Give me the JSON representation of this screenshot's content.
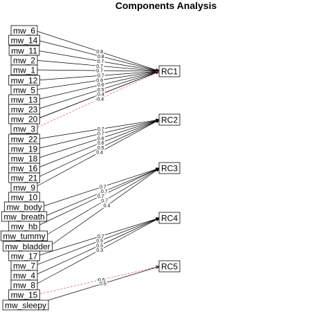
{
  "title": "Components Analysis",
  "components": [
    "RC1",
    "RC2",
    "RC3",
    "RC4",
    "RC5"
  ],
  "variables": [
    "mw_6",
    "mw_14",
    "mw_11",
    "mw_2",
    "mw_1",
    "mw_12",
    "mw_5",
    "mw_13",
    "mw_23",
    "mw_20",
    "mw_3",
    "mw_22",
    "mw_19",
    "mw_18",
    "mw_16",
    "mw_21",
    "mw_9",
    "mw_10",
    "mw_body",
    "mw_breath",
    "mw_hb",
    "mw_tummy",
    "mw_bladder",
    "mw_17",
    "mw_7",
    "mw_4",
    "mw_8",
    "mw_15",
    "mw_sleepy"
  ],
  "edges": [
    {
      "from": "mw_6",
      "to": "RC1",
      "label": "0.8",
      "negative": false
    },
    {
      "from": "mw_14",
      "to": "RC1",
      "label": "0.8",
      "negative": false
    },
    {
      "from": "mw_11",
      "to": "RC1",
      "label": "0.7",
      "negative": false
    },
    {
      "from": "mw_2",
      "to": "RC1",
      "label": "0.7",
      "negative": false
    },
    {
      "from": "mw_1",
      "to": "RC1",
      "label": "0.7",
      "negative": false
    },
    {
      "from": "mw_12",
      "to": "RC1",
      "label": "0.7",
      "negative": false
    },
    {
      "from": "mw_5",
      "to": "RC1",
      "label": "0.6",
      "negative": false
    },
    {
      "from": "mw_13",
      "to": "RC1",
      "label": "0.6",
      "negative": false
    },
    {
      "from": "mw_23",
      "to": "RC1",
      "label": "0.5",
      "negative": false
    },
    {
      "from": "mw_20",
      "to": "RC1",
      "label": "0.4",
      "negative": false
    },
    {
      "from": "mw_20",
      "to": "RC1",
      "label": "0.4",
      "negative": false
    },
    {
      "from": "mw_3",
      "to": "RC1",
      "label": "-0.4",
      "negative": true
    },
    {
      "from": "mw_22",
      "to": "RC2",
      "label": "0.7",
      "negative": false
    },
    {
      "from": "mw_19",
      "to": "RC2",
      "label": "0.7",
      "negative": false
    },
    {
      "from": "mw_18",
      "to": "RC2",
      "label": "0.6",
      "negative": false
    },
    {
      "from": "mw_16",
      "to": "RC2",
      "label": "0.6",
      "negative": false
    },
    {
      "from": "mw_21",
      "to": "RC2",
      "label": "0.5",
      "negative": false
    },
    {
      "from": "mw_9",
      "to": "RC2",
      "label": "0.4",
      "negative": false
    },
    {
      "from": "mw_body",
      "to": "RC3",
      "label": "0.7",
      "negative": false
    },
    {
      "from": "mw_breath",
      "to": "RC3",
      "label": "0.7",
      "negative": false
    },
    {
      "from": "mw_hb",
      "to": "RC3",
      "label": "0.7",
      "negative": false
    },
    {
      "from": "mw_tummy",
      "to": "RC3",
      "label": "0.7",
      "negative": false
    },
    {
      "from": "mw_bladder",
      "to": "RC3",
      "label": "0.4",
      "negative": false
    },
    {
      "from": "mw_17",
      "to": "RC4",
      "label": "0.7",
      "negative": false
    },
    {
      "from": "mw_7",
      "to": "RC4",
      "label": "0.5",
      "negative": false
    },
    {
      "from": "mw_4",
      "to": "RC4",
      "label": "0.5",
      "negative": false
    },
    {
      "from": "mw_8",
      "to": "RC4",
      "label": "0.3",
      "negative": false
    },
    {
      "from": "mw_15",
      "to": "RC5",
      "label": "-0.5",
      "negative": true
    },
    {
      "from": "mw_sleepy",
      "to": "RC5",
      "label": "0.5",
      "negative": false
    }
  ],
  "colors": {
    "positive": "#000000",
    "negative": "#c9507a"
  }
}
